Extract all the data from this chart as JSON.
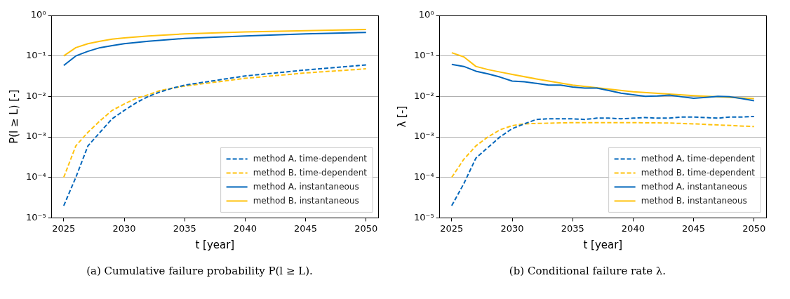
{
  "chart_data": [
    {
      "type": "line",
      "xlabel": "t [year]",
      "ylabel": "P(l ≥ L) [-]",
      "log": "y",
      "grid": "y",
      "legend": "bottom right",
      "xlim": [
        2024,
        2051
      ],
      "xticks": [
        2025,
        2030,
        2035,
        2040,
        2045,
        2050
      ],
      "ylim": [
        1e-05,
        1
      ],
      "yticks": [
        {
          "value": 1e-05,
          "label": "10⁻⁵"
        },
        {
          "value": 0.0001,
          "label": "10⁻⁴"
        },
        {
          "value": 0.001,
          "label": "10⁻³"
        },
        {
          "value": 0.01,
          "label": "10⁻²"
        },
        {
          "value": 0.1,
          "label": "10⁻¹"
        },
        {
          "value": 1,
          "label": "10⁰"
        }
      ],
      "annotations": [
        "(a) Cumulative failure probability P(l ≥ L)."
      ],
      "series": [
        {
          "name": "method A, time-dependent",
          "color": "#0066bb",
          "line_style": "dashed",
          "x": [
            2025,
            2026,
            2027,
            2028,
            2029,
            2030,
            2031,
            2032,
            2033,
            2034,
            2035,
            2040,
            2045,
            2050
          ],
          "values": [
            2e-05,
            0.0001,
            0.0006,
            0.0013,
            0.0028,
            0.0045,
            0.007,
            0.01,
            0.013,
            0.016,
            0.019,
            0.032,
            0.045,
            0.06
          ]
        },
        {
          "name": "method B, time-dependent",
          "color": "#ffc20e",
          "line_style": "dashed",
          "x": [
            2025,
            2026,
            2027,
            2028,
            2029,
            2030,
            2031,
            2032,
            2033,
            2034,
            2035,
            2040,
            2045,
            2050
          ],
          "values": [
            0.0001,
            0.0006,
            0.0013,
            0.0025,
            0.0045,
            0.0065,
            0.009,
            0.011,
            0.014,
            0.016,
            0.018,
            0.028,
            0.038,
            0.048
          ]
        },
        {
          "name": "method A, instantaneous",
          "color": "#0066bb",
          "line_style": "solid",
          "x": [
            2025,
            2026,
            2027,
            2028,
            2029,
            2030,
            2032,
            2035,
            2040,
            2045,
            2050
          ],
          "values": [
            0.058,
            0.1,
            0.13,
            0.16,
            0.18,
            0.2,
            0.23,
            0.27,
            0.31,
            0.35,
            0.38
          ]
        },
        {
          "name": "method B, instantaneous",
          "color": "#ffc20e",
          "line_style": "solid",
          "x": [
            2025,
            2026,
            2027,
            2028,
            2029,
            2030,
            2032,
            2035,
            2040,
            2045,
            2050
          ],
          "values": [
            0.1,
            0.16,
            0.2,
            0.23,
            0.26,
            0.28,
            0.31,
            0.35,
            0.39,
            0.42,
            0.45
          ]
        }
      ]
    },
    {
      "type": "line",
      "xlabel": "t [year]",
      "ylabel": "λ [-]",
      "log": "y",
      "grid": "y",
      "legend": "bottom right",
      "xlim": [
        2024,
        2051
      ],
      "xticks": [
        2025,
        2030,
        2035,
        2040,
        2045,
        2050
      ],
      "ylim": [
        1e-05,
        1
      ],
      "yticks": [
        {
          "value": 1e-05,
          "label": "10⁻⁵"
        },
        {
          "value": 0.0001,
          "label": "10⁻⁴"
        },
        {
          "value": 0.001,
          "label": "10⁻³"
        },
        {
          "value": 0.01,
          "label": "10⁻²"
        },
        {
          "value": 0.1,
          "label": "10⁻¹"
        },
        {
          "value": 1,
          "label": "10⁰"
        }
      ],
      "annotations": [
        "(b) Conditional failure rate λ."
      ],
      "series": [
        {
          "name": "method A, time-dependent",
          "color": "#0066bb",
          "line_style": "dashed",
          "x": [
            2025,
            2026,
            2027,
            2028,
            2029,
            2030,
            2031,
            2032,
            2033,
            2035,
            2036,
            2037,
            2038,
            2039,
            2040,
            2041,
            2042,
            2043,
            2044,
            2045,
            2046,
            2047,
            2048,
            2049,
            2050
          ],
          "values": [
            2e-05,
            7e-05,
            0.0003,
            0.00055,
            0.001,
            0.0016,
            0.0021,
            0.0027,
            0.0028,
            0.0028,
            0.0027,
            0.0029,
            0.0029,
            0.0028,
            0.0029,
            0.003,
            0.0029,
            0.0029,
            0.0031,
            0.0031,
            0.003,
            0.0029,
            0.0031,
            0.0031,
            0.0032
          ]
        },
        {
          "name": "method B, time-dependent",
          "color": "#ffc20e",
          "line_style": "dashed",
          "x": [
            2025,
            2026,
            2027,
            2028,
            2029,
            2030,
            2031,
            2032,
            2035,
            2040,
            2043,
            2045,
            2050
          ],
          "values": [
            0.0001,
            0.00028,
            0.0006,
            0.001,
            0.0015,
            0.0019,
            0.0021,
            0.00215,
            0.00225,
            0.00225,
            0.0022,
            0.0021,
            0.0018
          ]
        },
        {
          "name": "method A, instantaneous",
          "color": "#0066bb",
          "line_style": "solid",
          "x": [
            2025,
            2026,
            2027,
            2028,
            2029,
            2030,
            2031,
            2032,
            2033,
            2034,
            2035,
            2036,
            2037,
            2038,
            2039,
            2040,
            2041,
            2042,
            2043,
            2044,
            2045,
            2046,
            2047,
            2048,
            2049,
            2050
          ],
          "values": [
            0.062,
            0.055,
            0.042,
            0.036,
            0.03,
            0.024,
            0.023,
            0.021,
            0.019,
            0.019,
            0.017,
            0.016,
            0.016,
            0.014,
            0.012,
            0.011,
            0.01,
            0.0102,
            0.0108,
            0.0098,
            0.009,
            0.0095,
            0.01,
            0.0098,
            0.0088,
            0.0078
          ]
        },
        {
          "name": "method B, instantaneous",
          "color": "#ffc20e",
          "line_style": "solid",
          "x": [
            2025,
            2026,
            2027,
            2028,
            2029,
            2030,
            2032,
            2035,
            2040,
            2045,
            2050
          ],
          "values": [
            0.12,
            0.095,
            0.055,
            0.046,
            0.04,
            0.035,
            0.027,
            0.019,
            0.013,
            0.0105,
            0.0088
          ]
        }
      ]
    }
  ]
}
